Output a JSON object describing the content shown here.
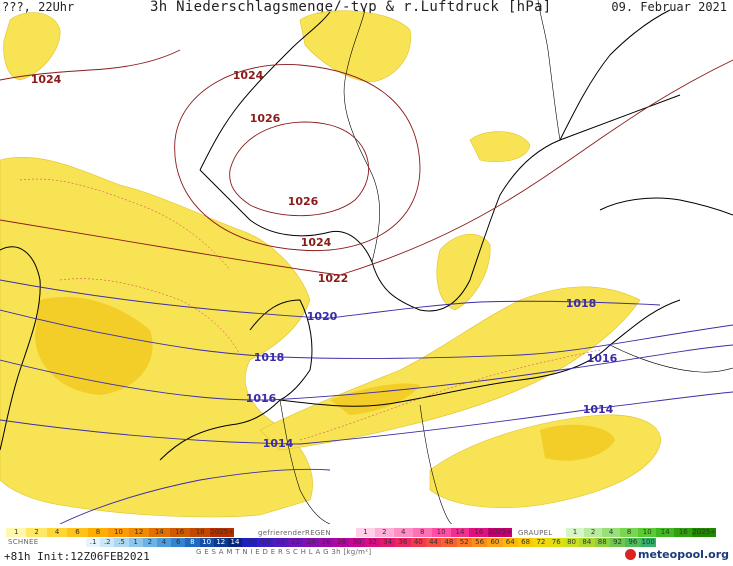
{
  "header": {
    "left": "???, 22Uhr",
    "title": "3h Niederschlagsmenge/-typ & r.Luftdruck [hPa]",
    "date": "09. Februar 2021"
  },
  "isobars": [
    {
      "label": "1024",
      "color": "#8b1a1a"
    },
    {
      "label": "1024",
      "color": "#8b1a1a"
    },
    {
      "label": "1026",
      "color": "#8b1a1a"
    },
    {
      "label": "1026",
      "color": "#8b1a1a"
    },
    {
      "label": "1024",
      "color": "#8b1a1a"
    },
    {
      "label": "1022",
      "color": "#8b1a1a"
    },
    {
      "label": "1020",
      "color": "#3b2ca8"
    },
    {
      "label": "1018",
      "color": "#3b2ca8"
    },
    {
      "label": "1018",
      "color": "#3b2ca8"
    },
    {
      "label": "1016",
      "color": "#3b2ca8"
    },
    {
      "label": "1016",
      "color": "#3b2ca8"
    },
    {
      "label": "1014",
      "color": "#3b2ca8"
    },
    {
      "label": "1014",
      "color": "#3b2ca8"
    }
  ],
  "legend": {
    "rain_values": [
      "1",
      "2",
      "4",
      "6",
      "8",
      "10",
      "12",
      "14",
      "16",
      "18",
      "2025+"
    ],
    "rain_colors": [
      "#fff7b0",
      "#ffe866",
      "#ffd633",
      "#ffc21a",
      "#ffae00",
      "#ff9a00",
      "#f08a00",
      "#e07000",
      "#d05a00",
      "#c04800",
      "#b03000"
    ],
    "freezing_label": "gefrierenderREGEN",
    "freezing_values": [
      "1",
      "2",
      "4",
      "8",
      "10",
      "14",
      "16",
      "2025+"
    ],
    "freezing_colors": [
      "#ffd0e6",
      "#ffb0d6",
      "#ff90c6",
      "#ff70b6",
      "#ff50a6",
      "#f03090",
      "#e01080",
      "#c00070"
    ],
    "graupel_label": "GRAUPEL",
    "graupel_values": [
      "1",
      "2",
      "4",
      "8",
      "10",
      "14",
      "16",
      "2025+"
    ],
    "graupel_colors": [
      "#d8f5c8",
      "#b8eba0",
      "#98e078",
      "#78d650",
      "#58cc30",
      "#40b820",
      "#30a010",
      "#208800"
    ],
    "snow_label": "SCHNEE",
    "snow_values": [
      ".1",
      ".2",
      ".5",
      "1",
      "2",
      "4",
      "6",
      "8",
      "10",
      "12",
      "14"
    ],
    "snow_colors": [
      "#e6f4fc",
      "#cce8f8",
      "#aed8f2",
      "#8ec6ec",
      "#6eb2e4",
      "#4e9cdc",
      "#3484d0",
      "#2068c0",
      "#1450aa",
      "#0c3a92",
      "#062678"
    ],
    "total_values": [
      "16",
      "18",
      "20",
      "22",
      "24",
      "26",
      "28",
      "30",
      "32",
      "34",
      "36",
      "40",
      "44",
      "48",
      "52",
      "56",
      "60",
      "64",
      "68",
      "72",
      "76",
      "80",
      "84",
      "88",
      "92",
      "96",
      "100"
    ],
    "total_colors": [
      "#2020c0",
      "#3a1cc0",
      "#5418bc",
      "#6c14b8",
      "#8410b0",
      "#9a0ca8",
      "#b0089c",
      "#c40890",
      "#d41080",
      "#e01870",
      "#ea2860",
      "#f03a50",
      "#f44e40",
      "#f66230",
      "#f87824",
      "#fa8e1c",
      "#fca414",
      "#fcb80c",
      "#f8ca08",
      "#f0d808",
      "#e0e010",
      "#c8e020",
      "#acd830",
      "#8ed040",
      "#70c650",
      "#52bc5c",
      "#34b068"
    ],
    "total_label": "G E S A M T N I E D E R S C H L A G   3h   [kg/m²]"
  },
  "footer": {
    "run": "+81h Init:12Z06FEB2021",
    "logo": "meteopool.org"
  }
}
